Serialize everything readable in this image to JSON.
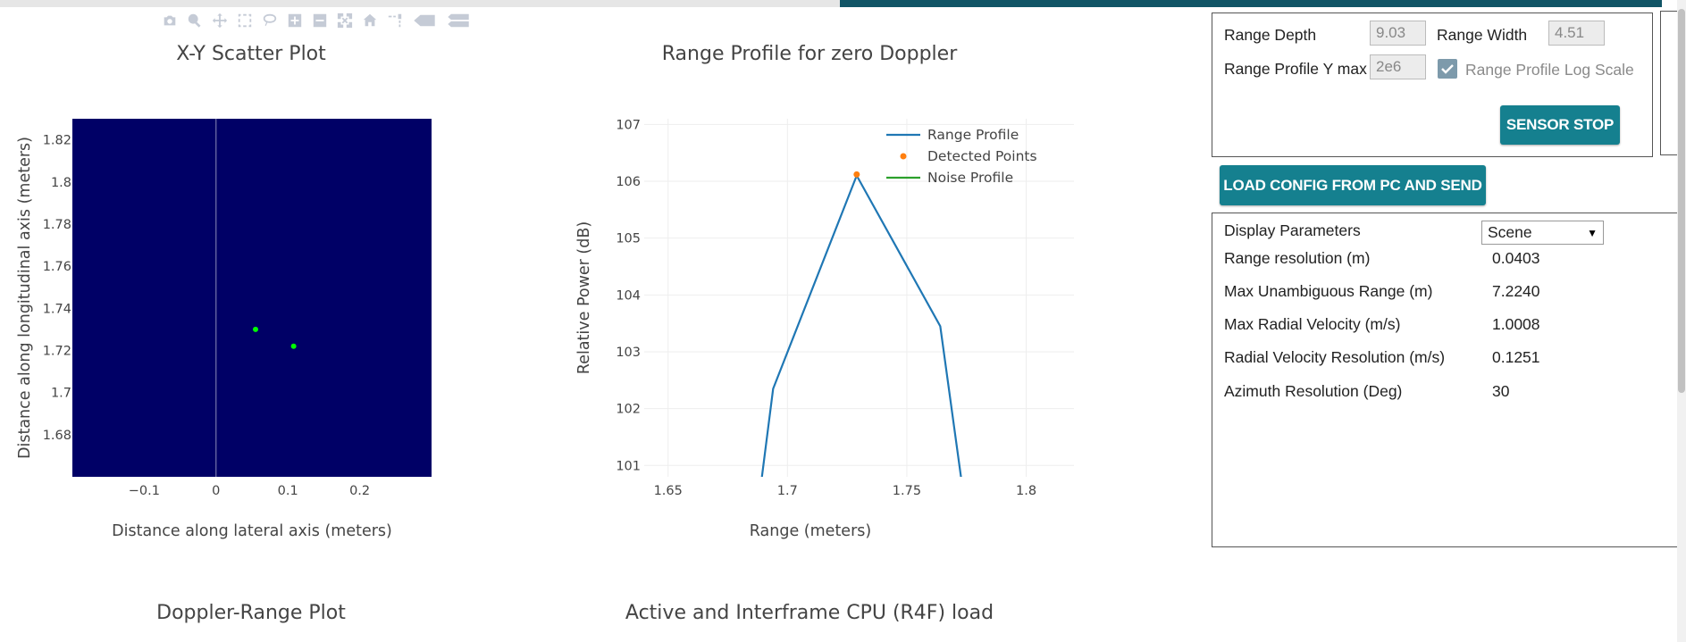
{
  "colors": {
    "plot_bg_scatter": "#000066",
    "range_line": "#1f77b4",
    "detected": "#ff7f0e",
    "noise": "#2ca02c",
    "button": "#15808f",
    "topbar": "#115566"
  },
  "modebar_icons": [
    "camera-icon",
    "zoom-icon",
    "pan-icon",
    "box-select-icon",
    "lasso-select-icon",
    "zoom-in-icon",
    "zoom-out-icon",
    "autoscale-icon",
    "reset-axes-icon",
    "spike-lines-icon",
    "hover-closest-icon",
    "hover-compare-icon"
  ],
  "scatter": {
    "title": "X-Y Scatter Plot",
    "chart_data": {
      "type": "scatter",
      "title": "X-Y Scatter Plot",
      "xlabel": "Distance along lateral axis (meters)",
      "ylabel": "Distance along longitudinal axis (meters)",
      "x_ticks": [
        "−0.1",
        "0",
        "0.1",
        "0.2"
      ],
      "y_ticks": [
        "1.82",
        "1.8",
        "1.78",
        "1.76",
        "1.74",
        "1.72",
        "1.7",
        "1.68"
      ],
      "xlim": [
        -0.2,
        0.3
      ],
      "ylim": [
        1.66,
        1.83
      ],
      "points": [
        {
          "x": 0.055,
          "y": 1.73
        },
        {
          "x": 0.108,
          "y": 1.722
        }
      ],
      "point_color": "#00ff00",
      "background": "#000066"
    }
  },
  "range_profile": {
    "title": "Range Profile for zero Doppler",
    "chart_data": {
      "type": "line",
      "title": "Range Profile for zero Doppler",
      "xlabel": "Range (meters)",
      "ylabel": "Relative Power (dB)",
      "x_ticks": [
        "1.65",
        "1.7",
        "1.75",
        "1.8"
      ],
      "y_ticks": [
        "107",
        "106",
        "105",
        "104",
        "103",
        "102",
        "101"
      ],
      "xlim": [
        1.64,
        1.82
      ],
      "ylim": [
        100.8,
        107.1
      ],
      "series": [
        {
          "name": "Range Profile",
          "color": "#1f77b4",
          "x": [
            1.689,
            1.694,
            1.729,
            1.764,
            1.773
          ],
          "y": [
            100.7,
            102.35,
            106.1,
            103.45,
            100.7
          ]
        },
        {
          "name": "Detected Points",
          "color": "#ff7f0e",
          "x": [
            1.729
          ],
          "y": [
            106.12
          ]
        },
        {
          "name": "Noise Profile",
          "color": "#2ca02c",
          "x": [],
          "y": []
        }
      ],
      "legend": "top-right"
    }
  },
  "bottom_titles": {
    "doppler": "Doppler-Range Plot",
    "cpu": "Active and Interframe CPU (R4F) load"
  },
  "controls": {
    "range_depth_label": "Range Depth",
    "range_depth_value": "9.03",
    "range_width_label": "Range Width",
    "range_width_value": "4.51",
    "range_ymax_label": "Range Profile Y max",
    "range_ymax_value": "2e6",
    "log_scale_label": "Range Profile Log Scale",
    "log_scale_checked": true,
    "sensor_stop": "SENSOR STOP",
    "load_config": "LOAD CONFIG FROM PC AND SEND"
  },
  "display_params": {
    "heading": "Display Parameters",
    "select_value": "Scene",
    "rows": [
      {
        "label": "Range resolution (m)",
        "value": "0.0403"
      },
      {
        "label": "Max Unambiguous Range (m)",
        "value": "7.2240"
      },
      {
        "label": "Max Radial Velocity (m/s)",
        "value": "1.0008"
      },
      {
        "label": "Radial Velocity Resolution (m/s)",
        "value": "0.1251"
      },
      {
        "label": "Azimuth Resolution (Deg)",
        "value": "30"
      }
    ]
  }
}
